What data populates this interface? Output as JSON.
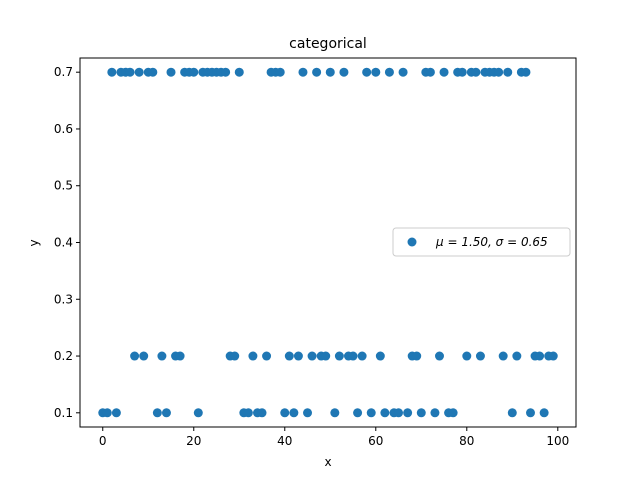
{
  "chart_data": {
    "type": "scatter",
    "title": "categorical",
    "xlabel": "x",
    "ylabel": "y",
    "xlim": [
      -5,
      104
    ],
    "ylim": [
      0.075,
      0.725
    ],
    "xticks": [
      0,
      20,
      40,
      60,
      80,
      100
    ],
    "yticks": [
      0.1,
      0.2,
      0.3,
      0.4,
      0.5,
      0.6,
      0.7
    ],
    "xtick_labels": [
      "0",
      "20",
      "40",
      "60",
      "80",
      "100"
    ],
    "ytick_labels": [
      "0.1",
      "0.2",
      "0.3",
      "0.4",
      "0.5",
      "0.6",
      "0.7"
    ],
    "color": "#1f77b4",
    "grid": false,
    "legend": {
      "position": "center-right",
      "label": "μ = 1.50,  σ = 0.65"
    },
    "series": [
      {
        "name": "μ = 1.50,  σ = 0.65",
        "points": [
          [
            0,
            0.1
          ],
          [
            1,
            0.1
          ],
          [
            3,
            0.1
          ],
          [
            12,
            0.1
          ],
          [
            14,
            0.1
          ],
          [
            21,
            0.1
          ],
          [
            31,
            0.1
          ],
          [
            32,
            0.1
          ],
          [
            34,
            0.1
          ],
          [
            35,
            0.1
          ],
          [
            40,
            0.1
          ],
          [
            42,
            0.1
          ],
          [
            45,
            0.1
          ],
          [
            51,
            0.1
          ],
          [
            56,
            0.1
          ],
          [
            59,
            0.1
          ],
          [
            62,
            0.1
          ],
          [
            64,
            0.1
          ],
          [
            65,
            0.1
          ],
          [
            67,
            0.1
          ],
          [
            70,
            0.1
          ],
          [
            73,
            0.1
          ],
          [
            76,
            0.1
          ],
          [
            77,
            0.1
          ],
          [
            90,
            0.1
          ],
          [
            94,
            0.1
          ],
          [
            97,
            0.1
          ],
          [
            7,
            0.2
          ],
          [
            9,
            0.2
          ],
          [
            13,
            0.2
          ],
          [
            16,
            0.2
          ],
          [
            17,
            0.2
          ],
          [
            28,
            0.2
          ],
          [
            29,
            0.2
          ],
          [
            33,
            0.2
          ],
          [
            36,
            0.2
          ],
          [
            41,
            0.2
          ],
          [
            43,
            0.2
          ],
          [
            46,
            0.2
          ],
          [
            48,
            0.2
          ],
          [
            49,
            0.2
          ],
          [
            52,
            0.2
          ],
          [
            54,
            0.2
          ],
          [
            55,
            0.2
          ],
          [
            57,
            0.2
          ],
          [
            61,
            0.2
          ],
          [
            68,
            0.2
          ],
          [
            69,
            0.2
          ],
          [
            74,
            0.2
          ],
          [
            80,
            0.2
          ],
          [
            83,
            0.2
          ],
          [
            88,
            0.2
          ],
          [
            91,
            0.2
          ],
          [
            95,
            0.2
          ],
          [
            96,
            0.2
          ],
          [
            98,
            0.2
          ],
          [
            99,
            0.2
          ],
          [
            2,
            0.7
          ],
          [
            4,
            0.7
          ],
          [
            5,
            0.7
          ],
          [
            6,
            0.7
          ],
          [
            8,
            0.7
          ],
          [
            10,
            0.7
          ],
          [
            11,
            0.7
          ],
          [
            15,
            0.7
          ],
          [
            18,
            0.7
          ],
          [
            19,
            0.7
          ],
          [
            20,
            0.7
          ],
          [
            22,
            0.7
          ],
          [
            23,
            0.7
          ],
          [
            24,
            0.7
          ],
          [
            25,
            0.7
          ],
          [
            26,
            0.7
          ],
          [
            27,
            0.7
          ],
          [
            30,
            0.7
          ],
          [
            37,
            0.7
          ],
          [
            38,
            0.7
          ],
          [
            39,
            0.7
          ],
          [
            44,
            0.7
          ],
          [
            47,
            0.7
          ],
          [
            50,
            0.7
          ],
          [
            53,
            0.7
          ],
          [
            58,
            0.7
          ],
          [
            60,
            0.7
          ],
          [
            63,
            0.7
          ],
          [
            66,
            0.7
          ],
          [
            71,
            0.7
          ],
          [
            72,
            0.7
          ],
          [
            75,
            0.7
          ],
          [
            78,
            0.7
          ],
          [
            79,
            0.7
          ],
          [
            81,
            0.7
          ],
          [
            82,
            0.7
          ],
          [
            84,
            0.7
          ],
          [
            85,
            0.7
          ],
          [
            86,
            0.7
          ],
          [
            87,
            0.7
          ],
          [
            89,
            0.7
          ],
          [
            92,
            0.7
          ],
          [
            93,
            0.7
          ]
        ]
      }
    ]
  }
}
